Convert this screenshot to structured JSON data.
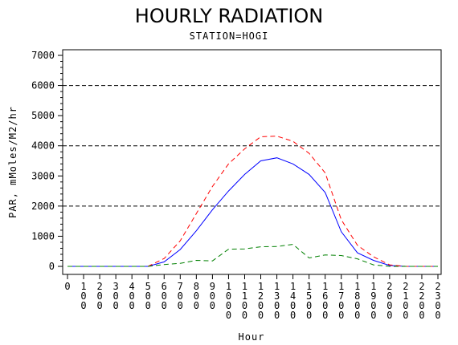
{
  "title": "HOURLY RADIATION",
  "subtitle": "STATION=HOGI",
  "chart_data": {
    "type": "line",
    "title": "HOURLY RADIATION",
    "subtitle": "STATION=HOGI",
    "xlabel": "Hour",
    "ylabel": "PAR, mMoles/M2/hr",
    "x": [
      0,
      100,
      200,
      300,
      400,
      500,
      600,
      700,
      800,
      900,
      1000,
      1100,
      1200,
      1300,
      1400,
      1500,
      1600,
      1700,
      1800,
      1900,
      2000,
      2100,
      2200,
      2300
    ],
    "x_tick_labels": [
      "0",
      "100",
      "200",
      "300",
      "400",
      "500",
      "600",
      "700",
      "800",
      "900",
      "1000",
      "1100",
      "1200",
      "1300",
      "1400",
      "1500",
      "1600",
      "1700",
      "1800",
      "1900",
      "2000",
      "2100",
      "2200",
      "2300"
    ],
    "y_ticks": [
      0,
      1000,
      2000,
      3000,
      4000,
      5000,
      6000,
      7000
    ],
    "ylim": [
      0,
      7000
    ],
    "xlim": [
      0,
      2300
    ],
    "reference_lines_y": [
      2000,
      4000,
      6000
    ],
    "grid": false,
    "series": [
      {
        "style": "solid",
        "color": "#0000ff",
        "values": [
          0,
          0,
          0,
          0,
          0,
          0,
          150,
          560,
          1180,
          1880,
          2500,
          3050,
          3500,
          3600,
          3400,
          3050,
          2450,
          1150,
          450,
          200,
          30,
          0,
          0,
          0
        ]
      },
      {
        "style": "dashed",
        "color": "#ff0000",
        "values": [
          0,
          0,
          0,
          0,
          0,
          0,
          260,
          850,
          1750,
          2650,
          3400,
          3900,
          4300,
          4320,
          4150,
          3750,
          3100,
          1550,
          700,
          320,
          50,
          0,
          0,
          0
        ]
      },
      {
        "style": "dashed",
        "color": "#008000",
        "values": [
          0,
          0,
          0,
          0,
          0,
          0,
          60,
          100,
          200,
          180,
          570,
          580,
          650,
          660,
          730,
          280,
          380,
          360,
          250,
          50,
          0,
          0,
          0,
          0
        ]
      }
    ]
  }
}
